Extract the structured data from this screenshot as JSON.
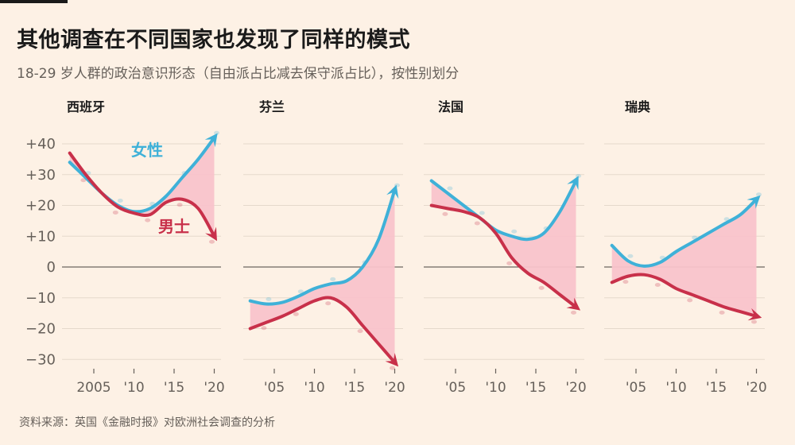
{
  "title": "其他调查在不同国家也发现了同样的模式",
  "subtitle": "18-29 岁人群的政治意识形态（自由派占比减去保守派占比），按性别划分",
  "source": "资料来源：英国《金融时报》对欧洲社会调查的分析",
  "colors": {
    "women": "#3fb1d8",
    "men": "#c8304a",
    "gap_fill": "#f9c3cb",
    "grid": "#e5d9cc",
    "zero_line": "#6b6660",
    "text_muted": "#66605a",
    "background": "#fdf1e5"
  },
  "chart_data": {
    "type": "line",
    "title": "其他调查在不同国家也发现了同样的模式",
    "subtitle": "18-29 岁人群的政治意识形态（自由派占比减去保守派占比），按性别划分",
    "ylabel": "",
    "xlabel": "",
    "ylim": [
      -30,
      40
    ],
    "yticks": [
      40,
      30,
      20,
      10,
      0,
      -10,
      -20,
      -30
    ],
    "ytick_labels": [
      "+40",
      "+30",
      "+20",
      "+10",
      "0",
      "−10",
      "−20",
      "−30"
    ],
    "xlim": [
      2002,
      2020
    ],
    "grid": true,
    "series_labels": {
      "women": "女性",
      "men": "男士"
    },
    "x": [
      2002,
      2004,
      2006,
      2008,
      2010,
      2012,
      2014,
      2016,
      2018,
      2020
    ],
    "panels": [
      {
        "country": "西班牙",
        "xticks": [
          2005,
          2010,
          2015,
          2020
        ],
        "xtick_labels": [
          "2005",
          "'10",
          "'15",
          "'20"
        ],
        "series": [
          {
            "name": "女性",
            "key": "women",
            "values": [
              34,
              29,
              24,
              20,
              18,
              19,
              23,
              29,
              35,
              42
            ]
          },
          {
            "name": "男士",
            "key": "men",
            "values": [
              37,
              30,
              24,
              19.5,
              17.5,
              17,
              21,
              22,
              19,
              10
            ]
          }
        ]
      },
      {
        "country": "芬兰",
        "xticks": [
          2005,
          2010,
          2015,
          2020
        ],
        "xtick_labels": [
          "'05",
          "'10",
          "'15",
          "'20"
        ],
        "series": [
          {
            "name": "女性",
            "key": "women",
            "values": [
              -11,
              -12,
              -11.5,
              -9.5,
              -7,
              -5.5,
              -4.5,
              0,
              9,
              25
            ]
          },
          {
            "name": "男士",
            "key": "men",
            "values": [
              -20,
              -18,
              -16,
              -13.5,
              -11,
              -10,
              -13,
              -19,
              -25,
              -31
            ]
          }
        ]
      },
      {
        "country": "法国",
        "xticks": [
          2005,
          2010,
          2015,
          2020
        ],
        "xtick_labels": [
          "'05",
          "'10",
          "'15",
          "'20"
        ],
        "series": [
          {
            "name": "女性",
            "key": "women",
            "values": [
              28,
              24,
              20,
              16,
              12,
              10,
              9,
              11,
              18,
              28
            ]
          },
          {
            "name": "男士",
            "key": "men",
            "values": [
              20,
              19,
              18,
              16,
              11,
              3,
              -2,
              -5,
              -9,
              -13
            ]
          }
        ]
      },
      {
        "country": "瑞典",
        "xticks": [
          2005,
          2010,
          2015,
          2020
        ],
        "xtick_labels": [
          "'05",
          "'10",
          "'15",
          "'20"
        ],
        "series": [
          {
            "name": "女性",
            "key": "women",
            "values": [
              7,
              2,
              0.3,
              1.5,
              5,
              8,
              11,
              14,
              17,
              22
            ]
          },
          {
            "name": "男士",
            "key": "men",
            "values": [
              -5,
              -3,
              -2.5,
              -4,
              -7,
              -9,
              -11,
              -13,
              -14.5,
              -16
            ]
          }
        ]
      }
    ]
  }
}
